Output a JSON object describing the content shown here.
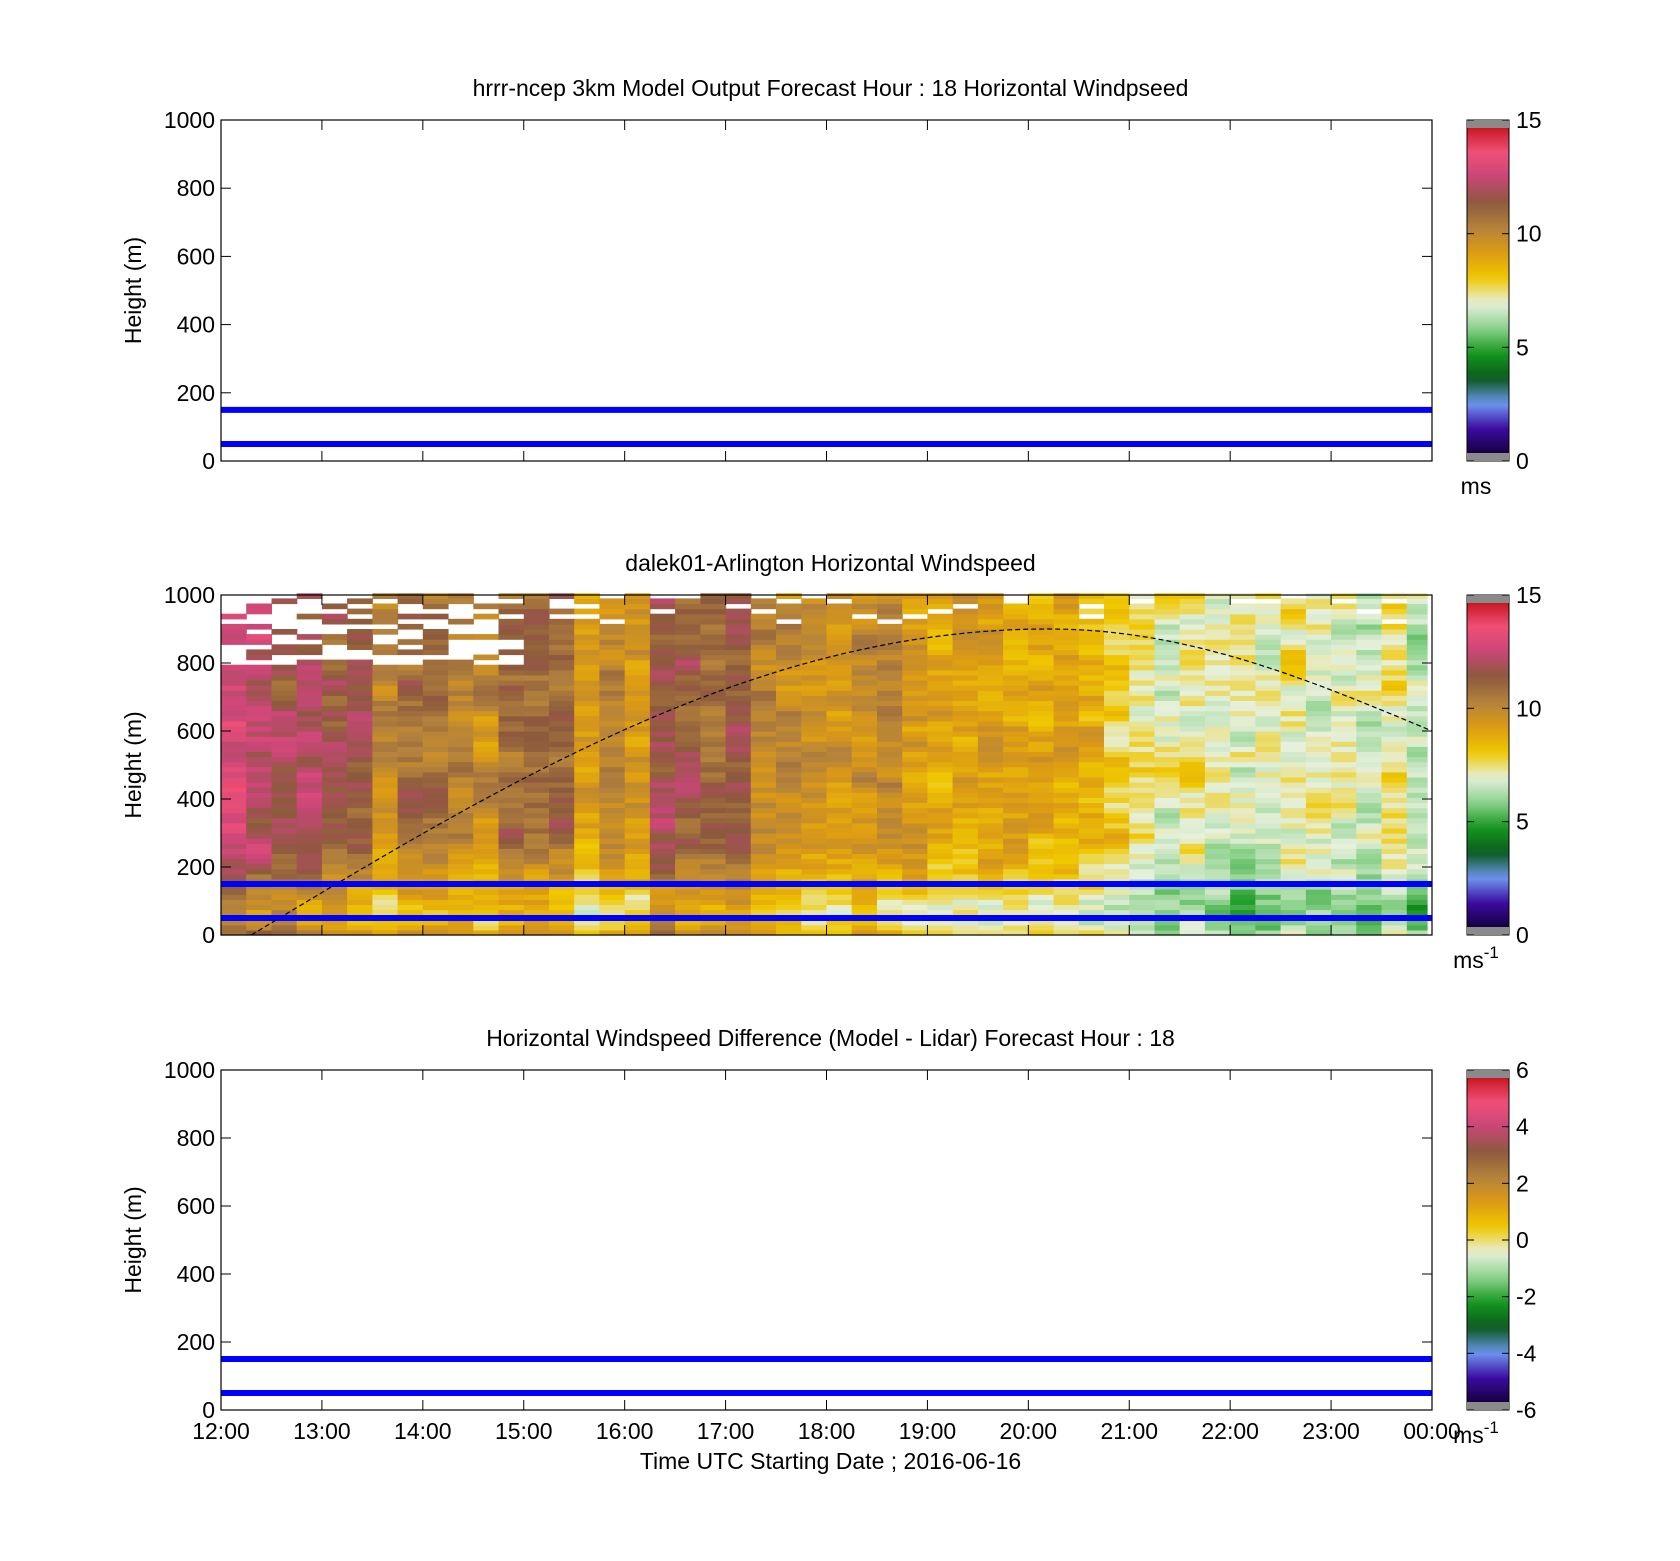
{
  "chart_data": [
    {
      "type": "heatmap",
      "title": "hrrr-ncep 3km Model Output   Forecast Hour : 18 Horizontal Windpseed",
      "ylabel": "Height (m)",
      "xlabel": "",
      "xlim": [
        12,
        24
      ],
      "ylim": [
        0,
        1000
      ],
      "yticks": [
        0,
        200,
        400,
        600,
        800,
        1000
      ],
      "xticks": [
        "12:00",
        "13:00",
        "14:00",
        "15:00",
        "16:00",
        "17:00",
        "18:00",
        "19:00",
        "20:00",
        "21:00",
        "22:00",
        "23:00",
        "00:00"
      ],
      "show_xtick_labels": false,
      "reference_lines_m": [
        50,
        150
      ],
      "reference_line_color": "#0000ff",
      "data": "empty",
      "colorbar": {
        "range": [
          0,
          15
        ],
        "ticks": [
          0,
          5,
          10,
          15
        ],
        "unit_label": "ms",
        "unit_superscript": ""
      }
    },
    {
      "type": "heatmap",
      "title": "dalek01-Arlington  Horizontal Windspeed",
      "ylabel": "Height (m)",
      "xlabel": "",
      "xlim": [
        12,
        24
      ],
      "ylim": [
        0,
        1000
      ],
      "yticks": [
        0,
        200,
        400,
        600,
        800,
        1000
      ],
      "xticks": [
        "12:00",
        "13:00",
        "14:00",
        "15:00",
        "16:00",
        "17:00",
        "18:00",
        "19:00",
        "20:00",
        "21:00",
        "22:00",
        "23:00",
        "00:00"
      ],
      "show_xtick_labels": false,
      "reference_lines_m": [
        50,
        150
      ],
      "reference_line_color": "#0000ff",
      "column_width_h": 0.25,
      "column_start_h": 12.0,
      "column_end_h": 23.9,
      "height_bin_m": 15,
      "approx_column_speed_ms": [
        13,
        12.5,
        12,
        12,
        11.5,
        11.5,
        10,
        11,
        11,
        10.5,
        10,
        11,
        11,
        11,
        9,
        10,
        9.5,
        12,
        11.5,
        11,
        11.5,
        10,
        10,
        9.5,
        9.5,
        10,
        10,
        9.5,
        9,
        9,
        9,
        9,
        9,
        9,
        8.5,
        8,
        7.5,
        7,
        7.5,
        7,
        7,
        7,
        7.5,
        7,
        7,
        6.5,
        7.5,
        6.5
      ],
      "mixing_height_curve": {
        "start_h": 12.3,
        "start_m": 0,
        "peak_h": 20.2,
        "peak_m": 900,
        "end_h": 24,
        "end_m": 600,
        "style": "dashed",
        "color": "#000000"
      },
      "colorbar": {
        "range": [
          0,
          15
        ],
        "ticks": [
          0,
          5,
          10,
          15
        ],
        "unit_label": "ms",
        "unit_superscript": "-1"
      }
    },
    {
      "type": "heatmap",
      "title": "Horizontal Windspeed Difference (Model - Lidar) Forecast Hour : 18",
      "ylabel": "Height (m)",
      "xlabel": "Time UTC  Starting Date ; 2016-06-16",
      "xlim": [
        12,
        24
      ],
      "ylim": [
        0,
        1000
      ],
      "yticks": [
        0,
        200,
        400,
        600,
        800,
        1000
      ],
      "xticks": [
        "12:00",
        "13:00",
        "14:00",
        "15:00",
        "16:00",
        "17:00",
        "18:00",
        "19:00",
        "20:00",
        "21:00",
        "22:00",
        "23:00",
        "00:00"
      ],
      "show_xtick_labels": true,
      "reference_lines_m": [
        50,
        150
      ],
      "reference_line_color": "#0000ff",
      "data": "empty",
      "colorbar": {
        "range": [
          -6,
          6
        ],
        "ticks": [
          -6,
          -4,
          -2,
          0,
          2,
          4,
          6
        ],
        "unit_label": "ms",
        "unit_superscript": "-1"
      }
    }
  ],
  "colormap_stops": [
    "#8a8a8a",
    "#14003c",
    "#3c0aa0",
    "#6e96f0",
    "#0a5a1e",
    "#14961e",
    "#8cd28c",
    "#e6f0dc",
    "#f0c800",
    "#dc9b14",
    "#b4823c",
    "#8c5a3c",
    "#c84678",
    "#f05078",
    "#c8141e",
    "#8a8a8a"
  ]
}
